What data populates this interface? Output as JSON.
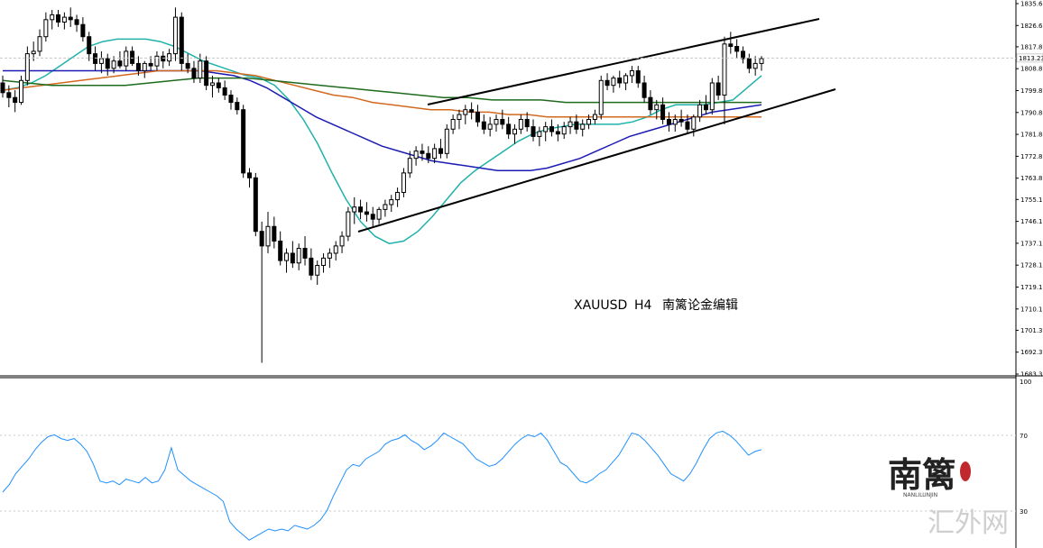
{
  "caption": {
    "symbol": "XAUUSD",
    "timeframe": "H4",
    "author": "南篱论金编辑"
  },
  "watermark": {
    "logo_text": "南篱",
    "logo_sub": "NANLILUNJIN",
    "site_text": "汇外网"
  },
  "colors": {
    "candle": "#000000",
    "ma_fast": "#20b2aa",
    "ma_blue": "#1c1cb4",
    "ma_orange": "#d2691e",
    "ma_green": "#1e6b1e",
    "rsi": "#1e90ff",
    "channel": "#000000",
    "seal": "#c0282d"
  },
  "chart_data": [
    {
      "type": "candlestick",
      "title": "XAUUSD  H4",
      "ylim": [
        1683.35,
        1835.6
      ],
      "y_ticks": [
        "1835.60",
        "1826.60",
        "1817.85",
        "1808.85",
        "1799.85",
        "1790.85",
        "1781.85",
        "1772.85",
        "1763.85",
        "1755.10",
        "1746.10",
        "1737.10",
        "1728.10",
        "1719.10",
        "1710.10",
        "1701.35",
        "1692.35",
        "1683.35"
      ],
      "current_price": "1813.23",
      "candles": [
        [
          1803,
          1806,
          1797,
          1799
        ],
        [
          1799,
          1802,
          1793,
          1797
        ],
        [
          1797,
          1800,
          1791,
          1795
        ],
        [
          1795,
          1806,
          1794,
          1804
        ],
        [
          1804,
          1818,
          1802,
          1815
        ],
        [
          1815,
          1820,
          1812,
          1816
        ],
        [
          1816,
          1825,
          1814,
          1822
        ],
        [
          1822,
          1832,
          1820,
          1829
        ],
        [
          1829,
          1833,
          1825,
          1831
        ],
        [
          1831,
          1833,
          1826,
          1828
        ],
        [
          1828,
          1832,
          1825,
          1830
        ],
        [
          1830,
          1834,
          1826,
          1829
        ],
        [
          1829,
          1831,
          1824,
          1827
        ],
        [
          1827,
          1830,
          1820,
          1822
        ],
        [
          1822,
          1824,
          1812,
          1815
        ],
        [
          1815,
          1818,
          1808,
          1811
        ],
        [
          1811,
          1816,
          1807,
          1813
        ],
        [
          1813,
          1815,
          1806,
          1809
        ],
        [
          1809,
          1814,
          1807,
          1812
        ],
        [
          1812,
          1816,
          1809,
          1810
        ],
        [
          1810,
          1818,
          1808,
          1816
        ],
        [
          1816,
          1818,
          1810,
          1811
        ],
        [
          1811,
          1814,
          1806,
          1808
        ],
        [
          1808,
          1812,
          1805,
          1811
        ],
        [
          1811,
          1814,
          1808,
          1810
        ],
        [
          1810,
          1816,
          1808,
          1814
        ],
        [
          1814,
          1816,
          1809,
          1812
        ],
        [
          1812,
          1817,
          1810,
          1815
        ],
        [
          1815,
          1834,
          1812,
          1830
        ],
        [
          1830,
          1832,
          1808,
          1811
        ],
        [
          1811,
          1815,
          1807,
          1809
        ],
        [
          1809,
          1812,
          1803,
          1805
        ],
        [
          1805,
          1815,
          1803,
          1812
        ],
        [
          1812,
          1814,
          1800,
          1802
        ],
        [
          1802,
          1806,
          1797,
          1803
        ],
        [
          1803,
          1805,
          1799,
          1801
        ],
        [
          1801,
          1804,
          1796,
          1798
        ],
        [
          1798,
          1800,
          1792,
          1795
        ],
        [
          1795,
          1797,
          1790,
          1792
        ],
        [
          1792,
          1794,
          1764,
          1766
        ],
        [
          1766,
          1768,
          1760,
          1764
        ],
        [
          1764,
          1766,
          1740,
          1742
        ],
        [
          1742,
          1746,
          1688,
          1736
        ],
        [
          1736,
          1750,
          1733,
          1744
        ],
        [
          1744,
          1748,
          1735,
          1738
        ],
        [
          1738,
          1742,
          1728,
          1730
        ],
        [
          1730,
          1735,
          1725,
          1733
        ],
        [
          1733,
          1738,
          1727,
          1729
        ],
        [
          1729,
          1737,
          1726,
          1735
        ],
        [
          1735,
          1740,
          1728,
          1731
        ],
        [
          1731,
          1735,
          1722,
          1724
        ],
        [
          1724,
          1730,
          1720,
          1728
        ],
        [
          1728,
          1733,
          1725,
          1731
        ],
        [
          1731,
          1735,
          1727,
          1733
        ],
        [
          1733,
          1738,
          1730,
          1736
        ],
        [
          1736,
          1742,
          1733,
          1740
        ],
        [
          1740,
          1752,
          1738,
          1750
        ],
        [
          1750,
          1756,
          1745,
          1752
        ],
        [
          1752,
          1755,
          1747,
          1750
        ],
        [
          1750,
          1754,
          1746,
          1749
        ],
        [
          1749,
          1752,
          1744,
          1747
        ],
        [
          1747,
          1752,
          1745,
          1751
        ],
        [
          1751,
          1755,
          1748,
          1753
        ],
        [
          1753,
          1757,
          1750,
          1755
        ],
        [
          1755,
          1760,
          1752,
          1758
        ],
        [
          1758,
          1768,
          1756,
          1766
        ],
        [
          1766,
          1775,
          1764,
          1772
        ],
        [
          1772,
          1777,
          1769,
          1775
        ],
        [
          1775,
          1778,
          1771,
          1774
        ],
        [
          1774,
          1777,
          1770,
          1772
        ],
        [
          1772,
          1778,
          1770,
          1776
        ],
        [
          1776,
          1780,
          1772,
          1774
        ],
        [
          1774,
          1786,
          1772,
          1784
        ],
        [
          1784,
          1790,
          1782,
          1788
        ],
        [
          1788,
          1792,
          1784,
          1790
        ],
        [
          1790,
          1794,
          1786,
          1792
        ],
        [
          1792,
          1795,
          1788,
          1791
        ],
        [
          1791,
          1794,
          1785,
          1787
        ],
        [
          1787,
          1790,
          1782,
          1784
        ],
        [
          1784,
          1789,
          1781,
          1786
        ],
        [
          1786,
          1790,
          1783,
          1788
        ],
        [
          1788,
          1792,
          1784,
          1786
        ],
        [
          1786,
          1789,
          1780,
          1782
        ],
        [
          1782,
          1786,
          1778,
          1784
        ],
        [
          1784,
          1790,
          1782,
          1788
        ],
        [
          1788,
          1791,
          1783,
          1785
        ],
        [
          1785,
          1788,
          1779,
          1781
        ],
        [
          1781,
          1785,
          1777,
          1783
        ],
        [
          1783,
          1787,
          1779,
          1785
        ],
        [
          1785,
          1788,
          1781,
          1783
        ],
        [
          1783,
          1786,
          1779,
          1782
        ],
        [
          1782,
          1787,
          1780,
          1785
        ],
        [
          1785,
          1789,
          1782,
          1787
        ],
        [
          1787,
          1790,
          1782,
          1784
        ],
        [
          1784,
          1788,
          1781,
          1786
        ],
        [
          1786,
          1790,
          1784,
          1788
        ],
        [
          1788,
          1792,
          1786,
          1790
        ],
        [
          1790,
          1806,
          1788,
          1804
        ],
        [
          1804,
          1807,
          1800,
          1802
        ],
        [
          1802,
          1806,
          1799,
          1805
        ],
        [
          1805,
          1808,
          1801,
          1803
        ],
        [
          1803,
          1807,
          1800,
          1806
        ],
        [
          1806,
          1810,
          1803,
          1808
        ],
        [
          1808,
          1810,
          1801,
          1803
        ],
        [
          1803,
          1806,
          1795,
          1797
        ],
        [
          1797,
          1800,
          1790,
          1792
        ],
        [
          1792,
          1796,
          1788,
          1794
        ],
        [
          1794,
          1797,
          1786,
          1788
        ],
        [
          1788,
          1791,
          1783,
          1786
        ],
        [
          1786,
          1790,
          1783,
          1788
        ],
        [
          1788,
          1792,
          1785,
          1787
        ],
        [
          1787,
          1790,
          1782,
          1784
        ],
        [
          1784,
          1790,
          1781,
          1789
        ],
        [
          1789,
          1796,
          1787,
          1794
        ],
        [
          1794,
          1798,
          1790,
          1792
        ],
        [
          1792,
          1805,
          1790,
          1803
        ],
        [
          1803,
          1806,
          1796,
          1798
        ],
        [
          1798,
          1822,
          1786,
          1819
        ],
        [
          1819,
          1824,
          1815,
          1818
        ],
        [
          1818,
          1821,
          1813,
          1816
        ],
        [
          1816,
          1818,
          1811,
          1813
        ],
        [
          1813,
          1815,
          1807,
          1809
        ],
        [
          1809,
          1814,
          1806,
          1811
        ],
        [
          1811,
          1814,
          1808,
          1813
        ]
      ],
      "moving_averages": [
        {
          "name": "MA fast",
          "values": [
            1800,
            1801,
            1803,
            1806,
            1810,
            1814,
            1818,
            1820,
            1821,
            1821,
            1821,
            1820,
            1818,
            1815,
            1812,
            1810,
            1808,
            1806,
            1805,
            1802,
            1796,
            1788,
            1778,
            1766,
            1755,
            1746,
            1740,
            1737,
            1738,
            1742,
            1748,
            1755,
            1762,
            1767,
            1771,
            1775,
            1779,
            1782,
            1784,
            1785,
            1786,
            1786,
            1786,
            1786,
            1787,
            1789,
            1792,
            1794,
            1794,
            1794,
            1795,
            1796,
            1801,
            1806
          ]
        },
        {
          "name": "MA blue",
          "values": [
            1808,
            1808,
            1808,
            1808,
            1808,
            1808,
            1808,
            1808,
            1808,
            1808,
            1808,
            1808,
            1808,
            1807,
            1806,
            1804,
            1801,
            1797,
            1793,
            1789,
            1786,
            1783,
            1780,
            1777,
            1775,
            1773,
            1771,
            1770,
            1769,
            1768,
            1767,
            1767,
            1767,
            1768,
            1770,
            1772,
            1775,
            1778,
            1781,
            1783,
            1785,
            1787,
            1789,
            1791,
            1792,
            1793,
            1794
          ]
        },
        {
          "name": "MA orange",
          "values": [
            1800,
            1801,
            1802,
            1803,
            1804,
            1805,
            1806,
            1807,
            1808,
            1808,
            1808,
            1808,
            1807,
            1806,
            1804,
            1802,
            1800,
            1798,
            1797,
            1795,
            1794,
            1793,
            1792,
            1792,
            1791,
            1791,
            1790,
            1790,
            1789,
            1789,
            1789,
            1789,
            1789,
            1789,
            1789,
            1789,
            1789,
            1789,
            1789,
            1789
          ]
        },
        {
          "name": "MA green",
          "values": [
            1804,
            1803,
            1802,
            1802,
            1802,
            1802,
            1803,
            1804,
            1805,
            1805,
            1805,
            1804,
            1803,
            1802,
            1801,
            1800,
            1799,
            1798,
            1797,
            1797,
            1796,
            1796,
            1796,
            1795,
            1795,
            1795,
            1795,
            1795,
            1795,
            1795,
            1795,
            1795
          ]
        }
      ]
    },
    {
      "type": "line",
      "title": "RSI",
      "ylim": [
        0,
        100
      ],
      "y_ticks": [
        "100",
        "70",
        "30"
      ],
      "series": [
        {
          "values": [
            40,
            44,
            50,
            54,
            58,
            63,
            67,
            70,
            71,
            69,
            68,
            69,
            66,
            62,
            55,
            46,
            45,
            46,
            44,
            47,
            46,
            45,
            48,
            45,
            46,
            52,
            64,
            52,
            49,
            46,
            44,
            42,
            40,
            38,
            35,
            24,
            20,
            17,
            14,
            16,
            18,
            20,
            19,
            20,
            19,
            22,
            21,
            20,
            22,
            25,
            30,
            38,
            45,
            52,
            55,
            54,
            58,
            60,
            62,
            66,
            68,
            69,
            71,
            68,
            66,
            63,
            65,
            68,
            72,
            70,
            68,
            66,
            62,
            58,
            56,
            54,
            55,
            58,
            62,
            66,
            69,
            71,
            70,
            72,
            68,
            62,
            56,
            54,
            50,
            46,
            45,
            47,
            50,
            52,
            56,
            60,
            66,
            72,
            71,
            68,
            64,
            60,
            55,
            50,
            48,
            46,
            50,
            56,
            63,
            69,
            72,
            73,
            71,
            68,
            64,
            60,
            62,
            63
          ]
        }
      ]
    }
  ]
}
